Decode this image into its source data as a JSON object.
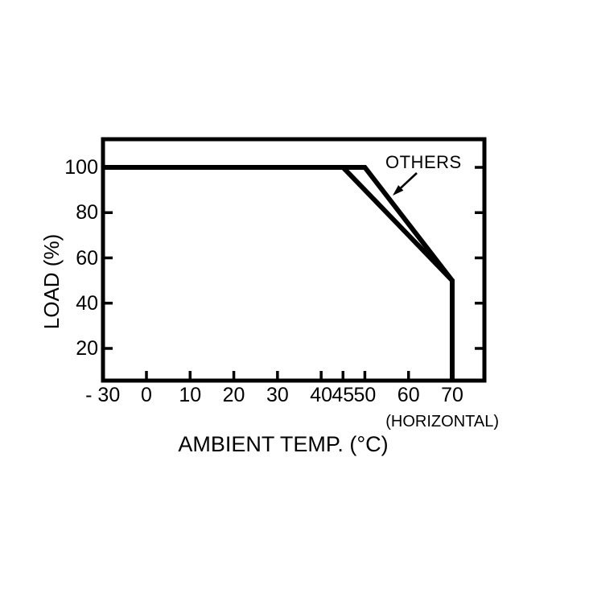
{
  "page": {
    "background": "#ffffff",
    "foreground": "#000000"
  },
  "chart_data": {
    "type": "line",
    "title": "",
    "xlabel": "AMBIENT TEMP. (°C)",
    "ylabel": "LOAD (%)",
    "grid": false,
    "legend": false,
    "line_color": "#000000",
    "background_color": "#ffffff",
    "xlim": [
      -30,
      77
    ],
    "ylim": [
      6,
      112
    ],
    "x_axis_note": "negative region compressed (-30 sits at the origin corner)",
    "x_tick_values": [
      -30,
      0,
      10,
      20,
      30,
      40,
      45,
      50,
      60,
      70
    ],
    "x_tick_labels": [
      "- 30",
      "0",
      "10",
      "20",
      "30",
      "40",
      "45",
      "50",
      "60",
      "70"
    ],
    "y_tick_values": [
      20,
      40,
      60,
      80,
      100
    ],
    "y_tick_labels": [
      "20",
      "40",
      "60",
      "80",
      "100"
    ],
    "series": [
      {
        "name": "HORIZONTAL",
        "points": [
          [
            -30,
            100
          ],
          [
            45,
            100
          ],
          [
            70,
            50
          ],
          [
            70,
            0
          ]
        ]
      },
      {
        "name": "OTHERS",
        "points": [
          [
            -30,
            100
          ],
          [
            50,
            100
          ],
          [
            70,
            50
          ],
          [
            70,
            0
          ]
        ]
      }
    ],
    "annotations": {
      "others_label": "OTHERS",
      "horizontal_note": "(HORIZONTAL)",
      "arrow_target": "OTHERS curve"
    }
  }
}
